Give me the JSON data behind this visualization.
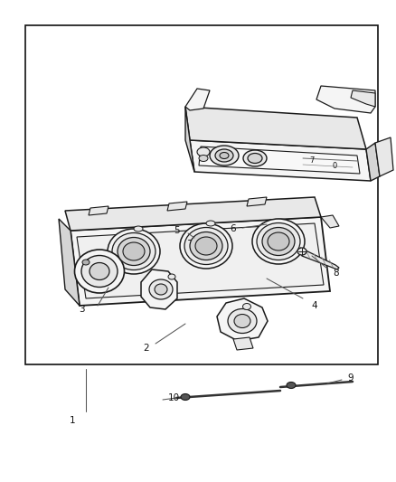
{
  "background_color": "#ffffff",
  "border_color": "#222222",
  "line_color": "#222222",
  "fig_w": 4.39,
  "fig_h": 5.33,
  "dpi": 100
}
